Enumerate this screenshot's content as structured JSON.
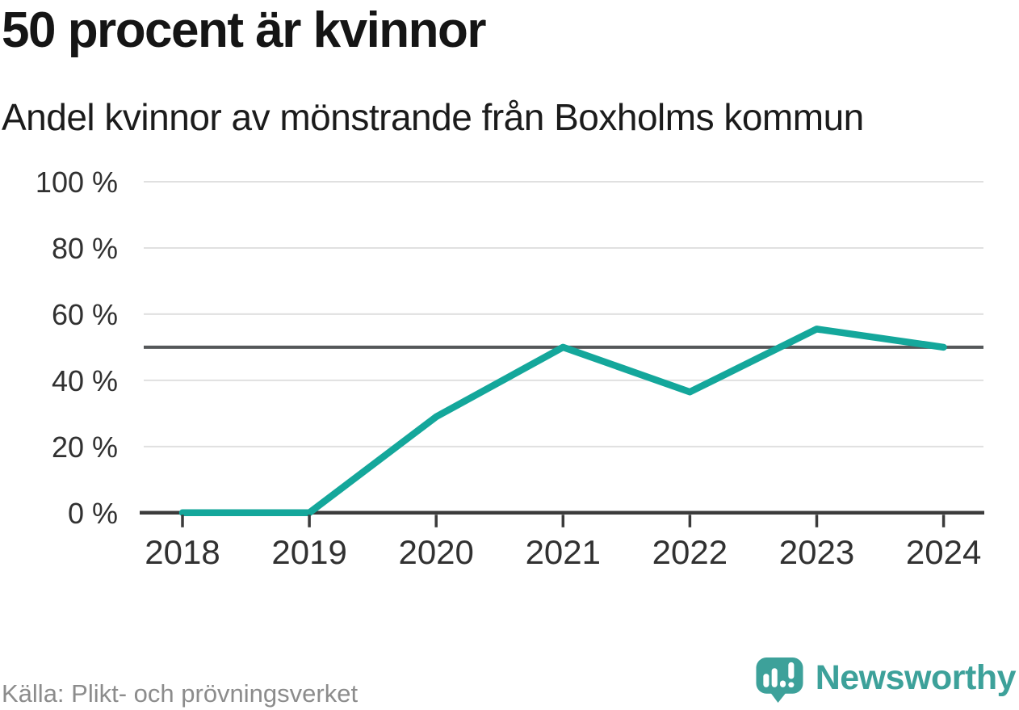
{
  "header": {
    "title": "50 procent är kvinnor",
    "subtitle": "Andel kvinnor av mönstrande från Boxholms kommun"
  },
  "footer": {
    "source": "Källa: Plikt- och prövningsverket",
    "brand": "Newsworthy"
  },
  "colors": {
    "background": "#ffffff",
    "title_text": "#151515",
    "subtitle_text": "#1b1b1b",
    "tick_label_text": "#313131",
    "grid": "#e0e0e0",
    "axis": "#3b3b3b",
    "reference_line": "#55585a",
    "line": "#14a79b",
    "source_text": "#8c8c8c",
    "brand": "#3da19a"
  },
  "chart_data": {
    "type": "line",
    "title": "50 procent är kvinnor",
    "subtitle": "Andel kvinnor av mönstrande från Boxholms kommun",
    "x": [
      2018,
      2019,
      2020,
      2021,
      2022,
      2023,
      2024
    ],
    "xtick_labels": [
      "2018",
      "2019",
      "2020",
      "2021",
      "2022",
      "2023",
      "2024"
    ],
    "values": [
      0,
      0,
      29,
      50,
      36.5,
      55.5,
      50
    ],
    "unit": "%",
    "ylim": [
      0,
      100
    ],
    "yticks": [
      0,
      20,
      40,
      60,
      80,
      100
    ],
    "ytick_labels": [
      "0 %",
      "20 %",
      "40 %",
      "60 %",
      "80 %",
      "100 %"
    ],
    "reference_line": 50,
    "grid": true,
    "legend": false,
    "source": "Källa: Plikt- och prövningsverket"
  }
}
